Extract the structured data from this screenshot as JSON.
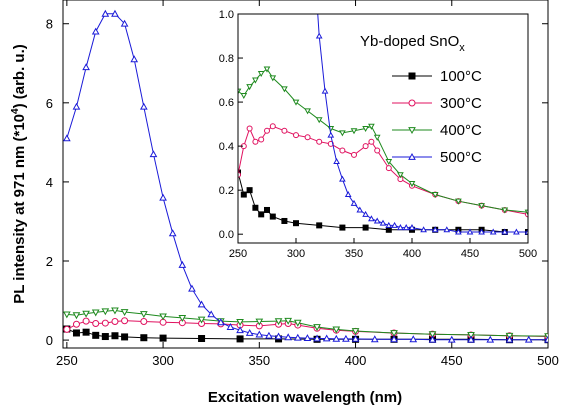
{
  "chart_data": [
    {
      "type": "line",
      "xlabel": "Excitation wavelength (nm)",
      "ylabel_main": "PL intensity at 971 nm (*10",
      "ylabel_sup": "4",
      "ylabel_tail": ") (arb. u.)",
      "xlim": [
        248,
        500
      ],
      "ylim": [
        -0.2,
        8.6
      ],
      "xticks": [
        "250",
        "300",
        "350",
        "400",
        "450",
        "500"
      ],
      "yticks": [
        "0",
        "2",
        "4",
        "6",
        "8"
      ],
      "series": [
        {
          "name": "100°C",
          "color": "#000000",
          "marker": "square-filled",
          "x": [
            250,
            255,
            260,
            265,
            270,
            275,
            280,
            290,
            300,
            320,
            340,
            360,
            380,
            400,
            420,
            440,
            460,
            480,
            500
          ],
          "y": [
            0.28,
            0.18,
            0.2,
            0.12,
            0.09,
            0.11,
            0.08,
            0.06,
            0.05,
            0.04,
            0.03,
            0.03,
            0.02,
            0.02,
            0.02,
            0.02,
            0.02,
            0.01,
            0.01
          ]
        },
        {
          "name": "300°C",
          "color": "#e0115f",
          "marker": "circle-open",
          "x": [
            250,
            255,
            260,
            265,
            270,
            275,
            280,
            290,
            300,
            310,
            320,
            330,
            340,
            350,
            360,
            365,
            370,
            380,
            390,
            400,
            420,
            440,
            460,
            480,
            500
          ],
          "y": [
            0.27,
            0.4,
            0.48,
            0.42,
            0.43,
            0.47,
            0.49,
            0.47,
            0.45,
            0.44,
            0.42,
            0.41,
            0.38,
            0.36,
            0.4,
            0.42,
            0.38,
            0.3,
            0.25,
            0.22,
            0.18,
            0.15,
            0.13,
            0.11,
            0.09
          ]
        },
        {
          "name": "400°C",
          "color": "#1e8a1e",
          "marker": "triangle-down-open",
          "x": [
            250,
            255,
            260,
            265,
            270,
            275,
            280,
            290,
            300,
            310,
            320,
            330,
            340,
            350,
            360,
            365,
            370,
            380,
            390,
            400,
            420,
            440,
            460,
            480,
            500
          ],
          "y": [
            0.65,
            0.63,
            0.67,
            0.7,
            0.73,
            0.75,
            0.71,
            0.66,
            0.6,
            0.56,
            0.52,
            0.48,
            0.46,
            0.47,
            0.48,
            0.49,
            0.44,
            0.33,
            0.27,
            0.23,
            0.18,
            0.15,
            0.13,
            0.11,
            0.1
          ]
        },
        {
          "name": "500°C",
          "color": "#1a1ad8",
          "marker": "triangle-up-open",
          "x": [
            250,
            255,
            260,
            265,
            270,
            275,
            280,
            285,
            290,
            295,
            300,
            305,
            310,
            315,
            320,
            325,
            330,
            335,
            340,
            345,
            350,
            355,
            360,
            365,
            370,
            375,
            380,
            385,
            390,
            395,
            400,
            410,
            420,
            430,
            440,
            450,
            460,
            470,
            480,
            490,
            500
          ],
          "y": [
            5.1,
            5.9,
            6.9,
            7.8,
            8.25,
            8.25,
            8.0,
            7.1,
            5.9,
            4.7,
            3.6,
            2.7,
            1.9,
            1.3,
            0.9,
            0.65,
            0.45,
            0.33,
            0.25,
            0.18,
            0.14,
            0.11,
            0.09,
            0.07,
            0.06,
            0.05,
            0.04,
            0.04,
            0.03,
            0.03,
            0.03,
            0.02,
            0.02,
            0.02,
            0.01,
            0.01,
            0.01,
            0.01,
            0.01,
            0.01,
            0.01
          ]
        }
      ]
    },
    {
      "type": "line",
      "inset": true,
      "legend_title_main": "Yb-doped SnO",
      "legend_title_sub": "x",
      "xlim": [
        250,
        500
      ],
      "ylim": [
        -0.04,
        1.0
      ],
      "xticks": [
        "250",
        "300",
        "350",
        "400",
        "450",
        "500"
      ],
      "yticks": [
        "0.0",
        "0.2",
        "0.4",
        "0.6",
        "0.8",
        "1.0"
      ],
      "series_ref": "same four series as main plot, zoomed to 0–1.0"
    }
  ]
}
